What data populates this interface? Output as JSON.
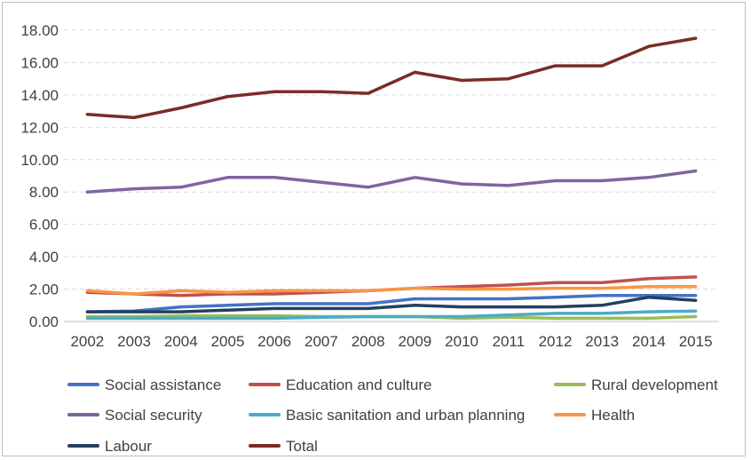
{
  "chart_data": {
    "type": "line",
    "title": "",
    "xlabel": "",
    "ylabel": "",
    "ylim": [
      0,
      18
    ],
    "y_ticks": [
      "0.00",
      "2.00",
      "4.00",
      "6.00",
      "8.00",
      "10.00",
      "12.00",
      "14.00",
      "16.00",
      "18.00"
    ],
    "categories": [
      "2002",
      "2003",
      "2004",
      "2005",
      "2006",
      "2007",
      "2008",
      "2009",
      "2010",
      "2011",
      "2012",
      "2013",
      "2014",
      "2015"
    ],
    "grid": "horizontal dashed",
    "legend_position": "bottom",
    "series": [
      {
        "name": "Social assistance",
        "color": "#4472c4",
        "values": [
          0.6,
          0.65,
          0.9,
          1.0,
          1.1,
          1.1,
          1.1,
          1.4,
          1.4,
          1.4,
          1.5,
          1.6,
          1.6,
          1.6
        ]
      },
      {
        "name": "Education and culture",
        "color": "#c0504d",
        "values": [
          1.8,
          1.7,
          1.6,
          1.7,
          1.7,
          1.8,
          1.9,
          2.05,
          2.15,
          2.25,
          2.4,
          2.4,
          2.65,
          2.75
        ]
      },
      {
        "name": "Rural development",
        "color": "#9bbb59",
        "values": [
          0.3,
          0.3,
          0.35,
          0.35,
          0.35,
          0.3,
          0.3,
          0.3,
          0.2,
          0.25,
          0.2,
          0.2,
          0.2,
          0.3
        ]
      },
      {
        "name": "Social security",
        "color": "#8064a2",
        "values": [
          8.0,
          8.2,
          8.3,
          8.9,
          8.9,
          8.6,
          8.3,
          8.9,
          8.5,
          8.4,
          8.7,
          8.7,
          8.9,
          9.3
        ]
      },
      {
        "name": "Basic sanitation and urban planning",
        "color": "#4bacc6",
        "values": [
          0.2,
          0.2,
          0.2,
          0.2,
          0.2,
          0.25,
          0.3,
          0.3,
          0.3,
          0.4,
          0.5,
          0.5,
          0.6,
          0.65
        ]
      },
      {
        "name": "Health",
        "color": "#f79646",
        "values": [
          1.9,
          1.7,
          1.9,
          1.8,
          1.9,
          1.9,
          1.9,
          2.05,
          2.0,
          2.0,
          2.05,
          2.05,
          2.15,
          2.15
        ]
      },
      {
        "name": "Labour",
        "color": "#243f60",
        "values": [
          0.6,
          0.6,
          0.6,
          0.7,
          0.8,
          0.8,
          0.8,
          1.0,
          0.9,
          0.9,
          0.9,
          1.0,
          1.5,
          1.3
        ]
      },
      {
        "name": "Total",
        "color": "#7b2c26",
        "values": [
          12.8,
          12.6,
          13.2,
          13.9,
          14.2,
          14.2,
          14.1,
          15.4,
          14.9,
          15.0,
          15.8,
          15.8,
          17.0,
          17.5
        ]
      }
    ]
  }
}
